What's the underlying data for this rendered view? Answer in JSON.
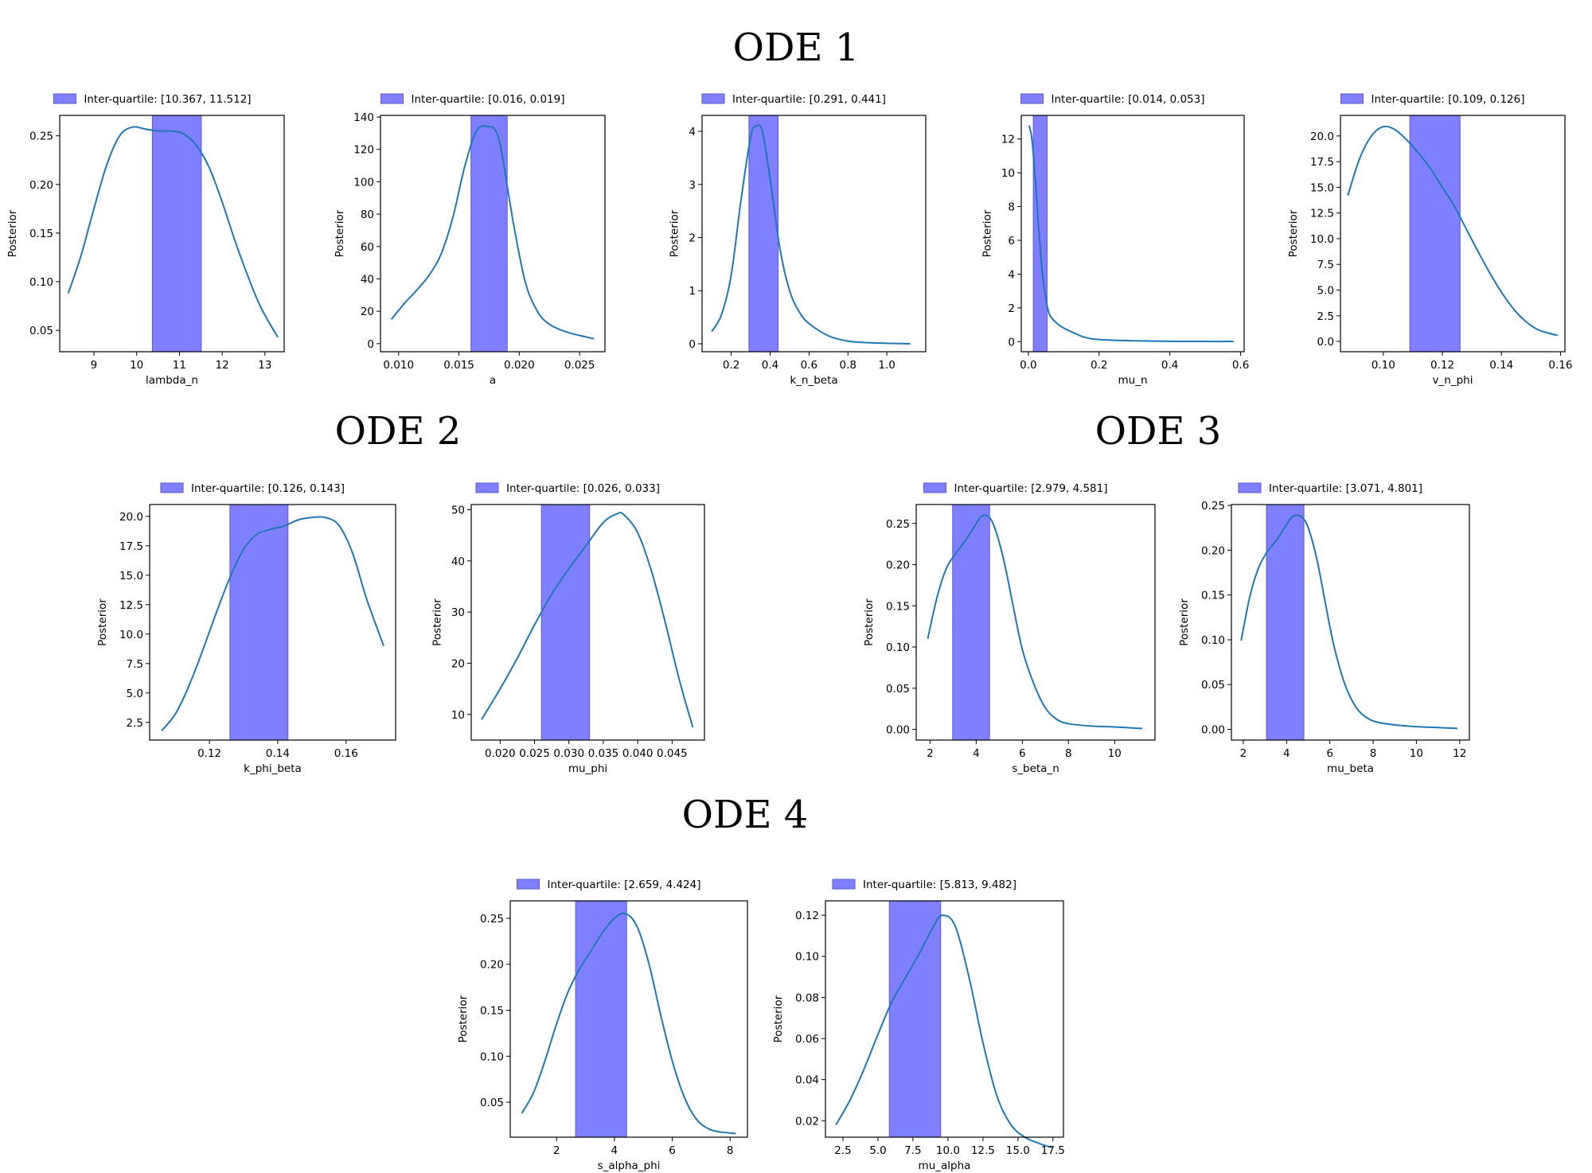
{
  "colors": {
    "curve": "#1f77b4",
    "band": "#7f7fff",
    "band_edge": "#5b5bd6",
    "axes": "#000000"
  },
  "groups": [
    {
      "title": "ODE 1"
    },
    {
      "title": "ODE 2"
    },
    {
      "title": "ODE 3"
    },
    {
      "title": "ODE 4"
    }
  ],
  "chart_data": [
    {
      "type": "line",
      "group": "ODE 1",
      "xlabel": "lambda_n",
      "ylabel": "Posterior",
      "legend": "Inter-quartile: [10.367, 11.512]",
      "band": [
        10.367,
        11.512
      ],
      "xlim": [
        8.2,
        13.45
      ],
      "ylim": [
        0.028,
        0.271
      ],
      "xticks": [
        9,
        10,
        11,
        12,
        13
      ],
      "xtick_labels": [
        "9",
        "10",
        "11",
        "12",
        "13"
      ],
      "yticks": [
        0.05,
        0.1,
        0.15,
        0.2,
        0.25
      ],
      "ytick_labels": [
        "0.05",
        "0.10",
        "0.15",
        "0.20",
        "0.25"
      ],
      "x": [
        8.4,
        8.7,
        9.0,
        9.3,
        9.6,
        9.9,
        10.2,
        10.5,
        10.8,
        11.1,
        11.4,
        11.7,
        12.0,
        12.3,
        12.6,
        12.9,
        13.3
      ],
      "y": [
        0.088,
        0.127,
        0.175,
        0.22,
        0.25,
        0.259,
        0.257,
        0.255,
        0.255,
        0.252,
        0.24,
        0.217,
        0.182,
        0.142,
        0.106,
        0.074,
        0.043
      ]
    },
    {
      "type": "line",
      "group": "ODE 1",
      "xlabel": "a",
      "ylabel": "Posterior",
      "legend": "Inter-quartile: [0.016, 0.019]",
      "band": [
        0.016,
        0.019
      ],
      "xlim": [
        0.0085,
        0.0271
      ],
      "ylim": [
        -5,
        141
      ],
      "xticks": [
        0.01,
        0.015,
        0.02,
        0.025
      ],
      "xtick_labels": [
        "0.010",
        "0.015",
        "0.020",
        "0.025"
      ],
      "yticks": [
        0,
        20,
        40,
        60,
        80,
        100,
        120,
        140
      ],
      "ytick_labels": [
        "0",
        "20",
        "40",
        "60",
        "80",
        "100",
        "120",
        "140"
      ],
      "x": [
        0.0094,
        0.0105,
        0.0115,
        0.0125,
        0.0135,
        0.0145,
        0.0155,
        0.0165,
        0.0175,
        0.018,
        0.0185,
        0.0195,
        0.0205,
        0.0215,
        0.0225,
        0.024,
        0.0262
      ],
      "y": [
        15,
        25,
        33,
        42,
        55,
        78,
        110,
        132,
        134,
        132,
        120,
        75,
        38,
        20,
        12,
        7,
        3
      ]
    },
    {
      "type": "line",
      "group": "ODE 1",
      "xlabel": "k_n_beta",
      "ylabel": "Posterior",
      "legend": "Inter-quartile: [0.291, 0.441]",
      "band": [
        0.291,
        0.441
      ],
      "xlim": [
        0.05,
        1.2
      ],
      "ylim": [
        -0.15,
        4.3
      ],
      "xticks": [
        0.2,
        0.4,
        0.6,
        0.8,
        1.0
      ],
      "xtick_labels": [
        "0.2",
        "0.4",
        "0.6",
        "0.8",
        "1.0"
      ],
      "yticks": [
        0,
        1,
        2,
        3,
        4
      ],
      "ytick_labels": [
        "0",
        "1",
        "2",
        "3",
        "4"
      ],
      "x": [
        0.1,
        0.15,
        0.2,
        0.25,
        0.3,
        0.33,
        0.36,
        0.4,
        0.45,
        0.5,
        0.55,
        0.6,
        0.7,
        0.8,
        0.9,
        1.0,
        1.12
      ],
      "y": [
        0.23,
        0.55,
        1.3,
        2.7,
        3.9,
        4.1,
        4.0,
        3.1,
        1.8,
        1.0,
        0.6,
        0.38,
        0.15,
        0.05,
        0.02,
        0.01,
        0.0
      ]
    },
    {
      "type": "line",
      "group": "ODE 1",
      "xlabel": "mu_n",
      "ylabel": "Posterior",
      "legend": "Inter-quartile: [0.014, 0.053]",
      "band": [
        0.014,
        0.053
      ],
      "xlim": [
        -0.02,
        0.61
      ],
      "ylim": [
        -0.6,
        13.4
      ],
      "xticks": [
        0.0,
        0.2,
        0.4,
        0.6
      ],
      "xtick_labels": [
        "0.0",
        "0.2",
        "0.4",
        "0.6"
      ],
      "yticks": [
        0,
        2,
        4,
        6,
        8,
        10,
        12
      ],
      "ytick_labels": [
        "0",
        "2",
        "4",
        "6",
        "8",
        "10",
        "12"
      ],
      "x": [
        0.002,
        0.01,
        0.02,
        0.03,
        0.04,
        0.05,
        0.06,
        0.08,
        0.1,
        0.13,
        0.16,
        0.2,
        0.3,
        0.4,
        0.5,
        0.58
      ],
      "y": [
        12.8,
        12.0,
        9.5,
        6.5,
        4.0,
        2.5,
        1.6,
        1.1,
        0.8,
        0.5,
        0.25,
        0.12,
        0.05,
        0.02,
        0.01,
        0.01
      ]
    },
    {
      "type": "line",
      "group": "ODE 1",
      "xlabel": "v_n_phi",
      "ylabel": "Posterior",
      "legend": "Inter-quartile: [0.109, 0.126]",
      "band": [
        0.109,
        0.126
      ],
      "xlim": [
        0.0855,
        0.1615
      ],
      "ylim": [
        -1,
        22
      ],
      "xticks": [
        0.1,
        0.12,
        0.14,
        0.16
      ],
      "xtick_labels": [
        "0.10",
        "0.12",
        "0.14",
        "0.16"
      ],
      "yticks": [
        0.0,
        2.5,
        5.0,
        7.5,
        10.0,
        12.5,
        15.0,
        17.5,
        20.0
      ],
      "ytick_labels": [
        "0.0",
        "2.5",
        "5.0",
        "7.5",
        "10.0",
        "12.5",
        "15.0",
        "17.5",
        "20.0"
      ],
      "x": [
        0.088,
        0.092,
        0.096,
        0.1,
        0.104,
        0.108,
        0.112,
        0.116,
        0.12,
        0.124,
        0.128,
        0.132,
        0.136,
        0.14,
        0.144,
        0.148,
        0.152,
        0.156,
        0.159
      ],
      "y": [
        14.2,
        17.8,
        20.0,
        20.9,
        20.6,
        19.6,
        18.3,
        16.8,
        15.0,
        13.2,
        11.0,
        8.8,
        6.7,
        4.8,
        3.2,
        2.0,
        1.2,
        0.8,
        0.6
      ]
    },
    {
      "type": "line",
      "group": "ODE 2",
      "xlabel": "k_phi_beta",
      "ylabel": "Posterior",
      "legend": "Inter-quartile: [0.126, 0.143]",
      "band": [
        0.126,
        0.143
      ],
      "xlim": [
        0.1025,
        0.1745
      ],
      "ylim": [
        1,
        21
      ],
      "xticks": [
        0.12,
        0.14,
        0.16
      ],
      "xtick_labels": [
        "0.12",
        "0.14",
        "0.16"
      ],
      "yticks": [
        2.5,
        5.0,
        7.5,
        10.0,
        12.5,
        15.0,
        17.5,
        20.0
      ],
      "ytick_labels": [
        "2.5",
        "5.0",
        "7.5",
        "10.0",
        "12.5",
        "15.0",
        "17.5",
        "20.0"
      ],
      "x": [
        0.106,
        0.11,
        0.114,
        0.118,
        0.122,
        0.126,
        0.13,
        0.134,
        0.138,
        0.142,
        0.146,
        0.15,
        0.154,
        0.158,
        0.162,
        0.166,
        0.171
      ],
      "y": [
        1.8,
        3.2,
        5.6,
        8.6,
        11.8,
        14.8,
        17.2,
        18.5,
        18.9,
        19.2,
        19.7,
        19.9,
        19.9,
        19.2,
        16.8,
        13.0,
        9.0
      ]
    },
    {
      "type": "line",
      "group": "ODE 2",
      "xlabel": "mu_phi",
      "ylabel": "Posterior",
      "legend": "Inter-quartile: [0.026, 0.033]",
      "band": [
        0.026,
        0.033
      ],
      "xlim": [
        0.0158,
        0.0497
      ],
      "ylim": [
        5,
        51
      ],
      "xticks": [
        0.02,
        0.025,
        0.03,
        0.035,
        0.04,
        0.045
      ],
      "xtick_labels": [
        "0.020",
        "0.025",
        "0.030",
        "0.035",
        "0.040",
        "0.045"
      ],
      "yticks": [
        10,
        20,
        30,
        40,
        50
      ],
      "ytick_labels": [
        "10",
        "20",
        "30",
        "40",
        "50"
      ],
      "x": [
        0.0173,
        0.02,
        0.0225,
        0.025,
        0.0275,
        0.03,
        0.0325,
        0.035,
        0.037,
        0.038,
        0.04,
        0.042,
        0.044,
        0.046,
        0.048
      ],
      "y": [
        9.0,
        15.0,
        21.0,
        27.5,
        33.5,
        38.5,
        43.0,
        47.5,
        49.2,
        49.0,
        45.5,
        38.0,
        28.0,
        17.0,
        7.5
      ]
    },
    {
      "type": "line",
      "group": "ODE 3",
      "xlabel": "s_beta_n",
      "ylabel": "Posterior",
      "legend": "Inter-quartile: [2.979, 4.581]",
      "band": [
        2.979,
        4.581
      ],
      "xlim": [
        1.4,
        11.75
      ],
      "ylim": [
        -0.013,
        0.273
      ],
      "xticks": [
        2,
        4,
        6,
        8,
        10
      ],
      "xtick_labels": [
        "2",
        "4",
        "6",
        "8",
        "10"
      ],
      "yticks": [
        0.0,
        0.05,
        0.1,
        0.15,
        0.2,
        0.25
      ],
      "ytick_labels": [
        "0.00",
        "0.05",
        "0.10",
        "0.15",
        "0.20",
        "0.25"
      ],
      "x": [
        1.9,
        2.3,
        2.7,
        3.1,
        3.5,
        3.9,
        4.2,
        4.5,
        4.8,
        5.2,
        5.6,
        6.0,
        6.5,
        7.0,
        7.5,
        8.0,
        9.0,
        10.0,
        11.2
      ],
      "y": [
        0.11,
        0.16,
        0.195,
        0.213,
        0.228,
        0.245,
        0.258,
        0.259,
        0.245,
        0.205,
        0.15,
        0.097,
        0.055,
        0.026,
        0.012,
        0.007,
        0.004,
        0.003,
        0.001
      ]
    },
    {
      "type": "line",
      "group": "ODE 3",
      "xlabel": "mu_beta",
      "ylabel": "Posterior",
      "legend": "Inter-quartile: [3.071, 4.801]",
      "band": [
        3.071,
        4.801
      ],
      "xlim": [
        1.45,
        12.45
      ],
      "ylim": [
        -0.012,
        0.251
      ],
      "xticks": [
        2,
        4,
        6,
        8,
        10,
        12
      ],
      "xtick_labels": [
        "2",
        "4",
        "6",
        "8",
        "10",
        "12"
      ],
      "yticks": [
        0.0,
        0.05,
        0.1,
        0.15,
        0.2,
        0.25
      ],
      "ytick_labels": [
        "0.00",
        "0.05",
        "0.10",
        "0.15",
        "0.20",
        "0.25"
      ],
      "x": [
        1.9,
        2.3,
        2.7,
        3.1,
        3.5,
        3.9,
        4.3,
        4.7,
        5.0,
        5.4,
        5.8,
        6.2,
        6.7,
        7.2,
        7.7,
        8.2,
        9.0,
        10.0,
        11.0,
        11.9
      ],
      "y": [
        0.099,
        0.148,
        0.18,
        0.198,
        0.21,
        0.225,
        0.238,
        0.237,
        0.225,
        0.19,
        0.14,
        0.092,
        0.05,
        0.025,
        0.013,
        0.008,
        0.005,
        0.003,
        0.002,
        0.001
      ]
    },
    {
      "type": "line",
      "group": "ODE 4",
      "xlabel": "s_alpha_phi",
      "ylabel": "Posterior",
      "legend": "Inter-quartile: [2.659, 4.424]",
      "band": [
        2.659,
        4.424
      ],
      "xlim": [
        0.4,
        8.6
      ],
      "ylim": [
        0.012,
        0.269
      ],
      "xticks": [
        2,
        4,
        6,
        8
      ],
      "xtick_labels": [
        "2",
        "4",
        "6",
        "8"
      ],
      "yticks": [
        0.05,
        0.1,
        0.15,
        0.2,
        0.25
      ],
      "ytick_labels": [
        "0.05",
        "0.10",
        "0.15",
        "0.20",
        "0.25"
      ],
      "x": [
        0.8,
        1.2,
        1.6,
        2.0,
        2.4,
        2.8,
        3.2,
        3.6,
        4.0,
        4.4,
        4.8,
        5.2,
        5.6,
        6.0,
        6.4,
        6.8,
        7.2,
        7.6,
        8.2
      ],
      "y": [
        0.038,
        0.06,
        0.095,
        0.135,
        0.17,
        0.195,
        0.215,
        0.235,
        0.25,
        0.255,
        0.24,
        0.2,
        0.145,
        0.095,
        0.057,
        0.033,
        0.022,
        0.018,
        0.016
      ]
    },
    {
      "type": "line",
      "group": "ODE 4",
      "xlabel": "mu_alpha",
      "ylabel": "Posterior",
      "legend": "Inter-quartile: [5.813, 9.482]",
      "band": [
        5.813,
        9.482
      ],
      "xlim": [
        1.25,
        18.25
      ],
      "ylim": [
        0.012,
        0.127
      ],
      "xticks": [
        2.5,
        5.0,
        7.5,
        10.0,
        12.5,
        15.0,
        17.5
      ],
      "xtick_labels": [
        "2.5",
        "5.0",
        "7.5",
        "10.0",
        "12.5",
        "15.0",
        "17.5"
      ],
      "yticks": [
        0.02,
        0.04,
        0.06,
        0.08,
        0.1,
        0.12
      ],
      "ytick_labels": [
        "0.02",
        "0.04",
        "0.06",
        "0.08",
        "0.10",
        "0.12"
      ],
      "x": [
        2.0,
        3.0,
        4.0,
        5.0,
        6.0,
        7.0,
        8.0,
        9.0,
        9.6,
        10.5,
        11.5,
        12.5,
        13.5,
        14.5,
        15.5,
        16.5,
        17.4
      ],
      "y": [
        0.018,
        0.03,
        0.045,
        0.062,
        0.078,
        0.09,
        0.102,
        0.115,
        0.12,
        0.115,
        0.09,
        0.058,
        0.032,
        0.018,
        0.012,
        0.009,
        0.007
      ]
    }
  ]
}
